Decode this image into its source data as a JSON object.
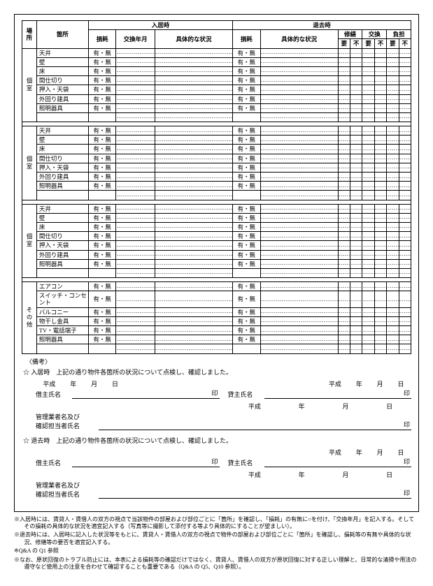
{
  "headers": {
    "place": "場\n所",
    "location": "箇所",
    "movein": "入居時",
    "moveout": "退去時",
    "wear": "損耗",
    "replace_ym": "交換年月",
    "condition": "具体的な状況",
    "repair": "修繕",
    "replace": "交換",
    "burden": "負担",
    "yes": "要",
    "no": "不"
  },
  "common": {
    "checkbox_label": "有・無"
  },
  "room_items": [
    "天井",
    "壁",
    "床",
    "間仕切り",
    "押入・天袋",
    "外回り建具",
    "照明器具"
  ],
  "room_label": "個室",
  "other_items": [
    "エアコン",
    "スイッチ・コンセント",
    "バルコニー",
    "物干し金具",
    "TV・電話端子",
    "照明器具"
  ],
  "other_label": "その他",
  "bikou": "〈備考〉",
  "confirm": {
    "movein_text": "☆ 入居時　上記の通り物件各箇所の状況について点検し、確認しました。",
    "moveout_text": "☆ 退去時　上記の通り物件各箇所の状況について点検し、確認しました。",
    "era": "平成",
    "y": "年",
    "m": "月",
    "d": "日",
    "lessee": "借主氏名",
    "lessor": "貸主氏名",
    "manager1": "管理業者名及び",
    "manager2": "確認担当者氏名",
    "seal": "印"
  },
  "notes": [
    "※入居時には、賃貸人・賃借人の双方の視点で当該物件の部屋および部位ごとに「箇所」を確認し、「損耗」の有無に○を付け、「交換年月」を記入する。そしてその損耗の具体的な状況を適宜記入する（写真等に撮影して添付する等より具体的にすることが望ましい）。",
    "※退去時には、入居時に記入した状況等をもとに、賃貸人・賃借人の双方の視点で物件の部屋および部位ごとに「箇所」を確認し、損耗等の有無や具体的な状況、修繕等の要否を適宜記入する。",
    "※Q&A の Q1 参照",
    "※なお、原状回復のトラブル防止には、本表による損耗等の確認だけではなく、賃貸人、賃借人の双方が原状回復に対する正しい理解と、日常的な清掃や用法の遵守など使用上の注意を合わせて確認することも重要である（Q&A の Q5、Q10 参照）。"
  ]
}
